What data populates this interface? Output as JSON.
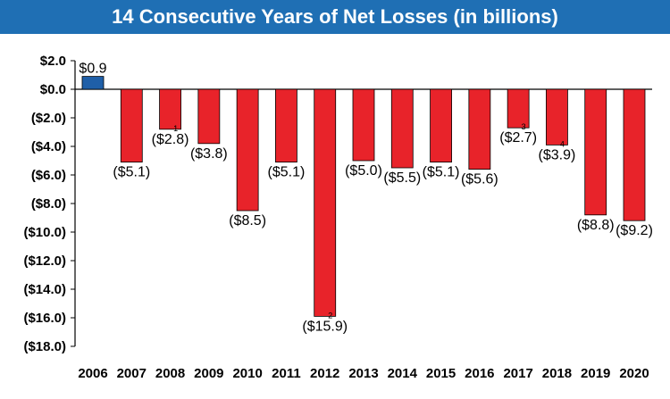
{
  "title": "14 Consecutive Years of Net Losses (in billions)",
  "colors": {
    "title_bg": "#1f6fb4",
    "positive": "#1f5fa8",
    "negative": "#e8232a",
    "axis": "#000000"
  },
  "chart_data": {
    "type": "bar",
    "title": "14 Consecutive Years of Net Losses (in billions)",
    "xlabel": "",
    "ylabel": "",
    "categories": [
      "2006",
      "2007",
      "2008",
      "2009",
      "2010",
      "2011",
      "2012",
      "2013",
      "2014",
      "2015",
      "2016",
      "2017",
      "2018",
      "2019",
      "2020"
    ],
    "values": [
      0.9,
      -5.1,
      -2.8,
      -3.8,
      -8.5,
      -5.1,
      -15.9,
      -5.0,
      -5.5,
      -5.1,
      -5.6,
      -2.7,
      -3.9,
      -8.8,
      -9.2
    ],
    "data_labels": [
      "$0.9",
      "($5.1)",
      "($2.8)",
      "($3.8)",
      "($8.5)",
      "($5.1)",
      "($15.9)",
      "($5.0)",
      "($5.5)",
      "($5.1)",
      "($5.6)",
      "($2.7)",
      "($3.9)",
      "($8.8)",
      "($9.2)"
    ],
    "ylim": [
      -18,
      2
    ],
    "yticks": [
      2,
      0,
      -2,
      -4,
      -6,
      -8,
      -10,
      -12,
      -14,
      -16,
      -18
    ],
    "ytick_labels": [
      "$2.0",
      "$0.0",
      "($2.0)",
      "($4.0)",
      "($6.0)",
      "($8.0)",
      "($10.0)",
      "($12.0)",
      "($14.0)",
      "($16.0)",
      "($18.0)"
    ],
    "footnote_marks": [
      {
        "index": 2,
        "mark": "1"
      },
      {
        "index": 6,
        "mark": "2"
      },
      {
        "index": 11,
        "mark": "3"
      },
      {
        "index": 12,
        "mark": "4"
      }
    ],
    "grid": false,
    "legend": "none"
  }
}
